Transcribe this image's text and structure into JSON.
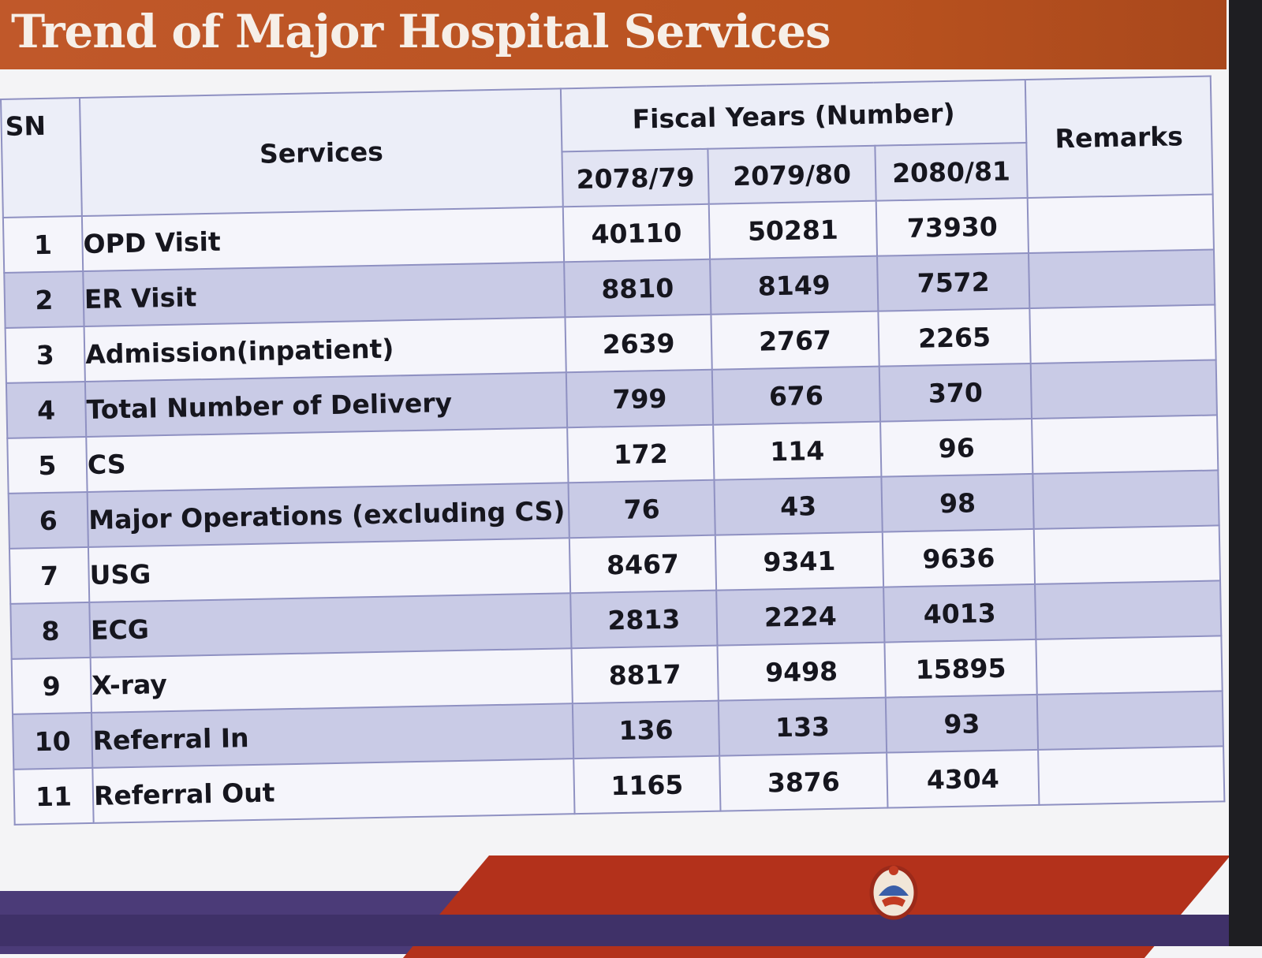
{
  "title": "Trend of Major Hospital Services",
  "table": {
    "headers": {
      "sn": "SN",
      "services": "Services",
      "fiscal_years": "Fiscal Years (Number)",
      "remarks": "Remarks",
      "years": [
        "2078/79",
        "2079/80",
        "2080/81"
      ]
    },
    "rows": [
      {
        "sn": "1",
        "service": "OPD Visit",
        "v1": "40110",
        "v2": "50281",
        "v3": "73930",
        "remarks": ""
      },
      {
        "sn": "2",
        "service": "ER Visit",
        "v1": "8810",
        "v2": "8149",
        "v3": "7572",
        "remarks": ""
      },
      {
        "sn": "3",
        "service": "Admission(inpatient)",
        "v1": "2639",
        "v2": "2767",
        "v3": "2265",
        "remarks": ""
      },
      {
        "sn": "4",
        "service": "Total Number of Delivery",
        "v1": "799",
        "v2": "676",
        "v3": "370",
        "remarks": ""
      },
      {
        "sn": "5",
        "service": "CS",
        "v1": "172",
        "v2": "114",
        "v3": "96",
        "remarks": ""
      },
      {
        "sn": "6",
        "service": "Major Operations  (excluding CS)",
        "v1": "76",
        "v2": "43",
        "v3": "98",
        "remarks": ""
      },
      {
        "sn": "7",
        "service": "USG",
        "v1": "8467",
        "v2": "9341",
        "v3": "9636",
        "remarks": ""
      },
      {
        "sn": "8",
        "service": "ECG",
        "v1": "2813",
        "v2": "2224",
        "v3": "4013",
        "remarks": ""
      },
      {
        "sn": "9",
        "service": "X-ray",
        "v1": "8817",
        "v2": "9498",
        "v3": "15895",
        "remarks": ""
      },
      {
        "sn": "10",
        "service": "Referral In",
        "v1": "136",
        "v2": "133",
        "v3": "93",
        "remarks": ""
      },
      {
        "sn": "11",
        "service": "Referral Out",
        "v1": "1165",
        "v2": "3876",
        "v3": "4304",
        "remarks": ""
      }
    ]
  },
  "colors": {
    "title_bar": "#c0582a",
    "row_shade": "#c9cbe6",
    "grid": "#8f91c2",
    "footer_red": "#b3311b",
    "footer_purple": "#4b3b78"
  },
  "emblem_icon": "government-emblem-icon"
}
